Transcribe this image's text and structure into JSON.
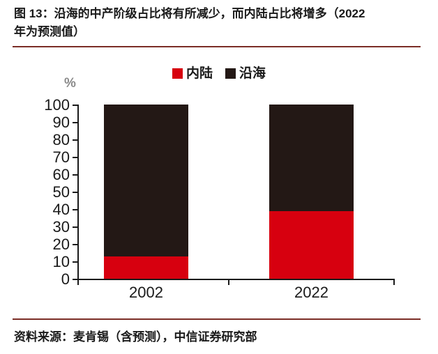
{
  "header": {
    "title_line1": "图 13：沿海的中产阶级占比将有所减少，而内陆占比将增多（2022",
    "title_line2": "年为预测值）"
  },
  "footer": {
    "source": "资料来源：麦肯锡（含预测），中信证券研究部"
  },
  "colors": {
    "divider": "#7b2d26",
    "axis": "#1a1a1a",
    "inland_red": "#d7000f",
    "coastal_black": "#231815",
    "unit_label_gray": "#8a8a8a"
  },
  "chart_data": {
    "type": "bar",
    "stacked": true,
    "title": "沿海的中产阶级占比将有所减少，而内陆占比将增多（2022年为预测值）",
    "categories": [
      "2002",
      "2022"
    ],
    "series": [
      {
        "name": "内陆",
        "color": "#d7000f",
        "values": [
          13,
          39
        ]
      },
      {
        "name": "沿海",
        "color": "#231815",
        "values": [
          87,
          61
        ]
      }
    ],
    "ylabel": "%",
    "ylim": [
      0,
      100
    ],
    "ytick_step": 10,
    "grid": false,
    "legend_position": "top-center"
  }
}
